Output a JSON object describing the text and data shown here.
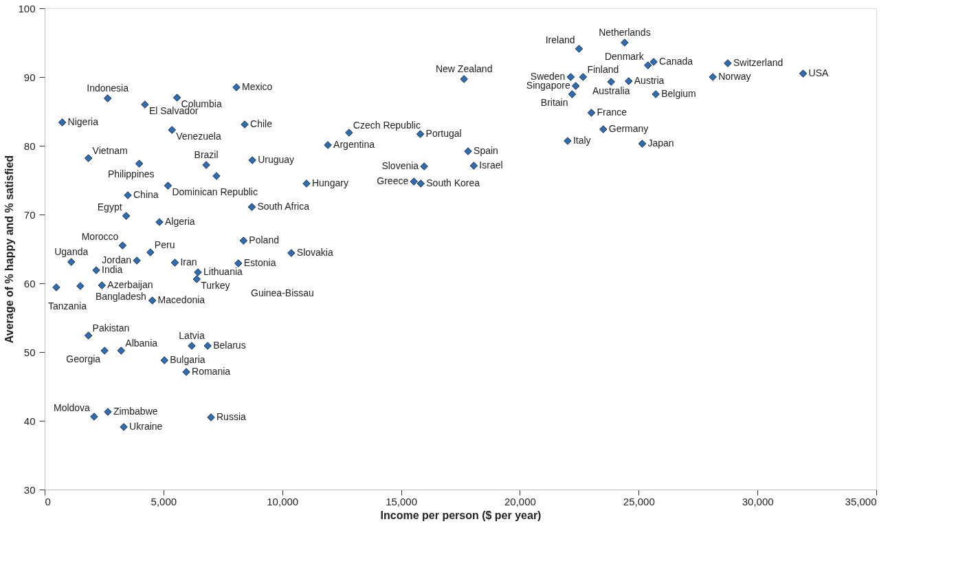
{
  "chart_data": {
    "type": "scatter",
    "xlabel": "Income per person ($ per year)",
    "ylabel": "Average of % happy and % satisfied",
    "marker": "diamond",
    "grid": false,
    "xlim": [
      0,
      35000
    ],
    "ylim": [
      30,
      100
    ],
    "xticks": [
      0,
      {
        "value": 5000,
        "label": "5,000"
      },
      {
        "value": 10000,
        "label": "10,000"
      },
      {
        "value": 15000,
        "label": "15,000"
      },
      {
        "value": 20000,
        "label": "20,000"
      },
      {
        "value": 25000,
        "label": "25,000"
      },
      {
        "value": 30000,
        "label": "30,000"
      },
      {
        "value": 35000,
        "label": "35,000"
      }
    ],
    "yticks": [
      30,
      40,
      50,
      60,
      70,
      80,
      90,
      100
    ],
    "series": [
      {
        "color": "#2e6db4",
        "x": [
          22490,
          24410,
          25390,
          25630,
          28750,
          28120,
          31920,
          17650,
          22140,
          22660,
          22350,
          22200,
          23840,
          24580,
          25720,
          23010,
          23510,
          22010,
          25150,
          15810,
          17820,
          18060,
          15970,
          15540,
          15830,
          2650,
          4220,
          5570,
          8070,
          740,
          5360,
          8420,
          12810,
          11920,
          1840,
          3980,
          6800,
          7230,
          8740,
          11020,
          5190,
          3500,
          8720,
          3430,
          4830,
          3280,
          8370,
          4450,
          10380,
          1120,
          3880,
          5480,
          8150,
          2170,
          6450,
          6400,
          490,
          1500,
          2410,
          4530,
          1840,
          2520,
          3220,
          6190,
          6860,
          5040,
          5960,
          2080,
          2660,
          3330,
          7000
        ],
        "values": [
          94.1,
          95.0,
          91.7,
          92.2,
          92.0,
          90.0,
          90.5,
          89.7,
          90.0,
          90.0,
          88.7,
          87.5,
          89.3,
          89.4,
          87.5,
          84.8,
          82.4,
          80.7,
          80.3,
          81.7,
          79.2,
          77.1,
          77.0,
          74.8,
          74.5,
          86.9,
          86.0,
          87.0,
          88.5,
          83.4,
          82.3,
          83.1,
          81.9,
          80.1,
          78.2,
          77.4,
          77.2,
          75.6,
          77.9,
          74.5,
          74.2,
          72.8,
          71.1,
          69.8,
          68.9,
          65.5,
          66.2,
          64.5,
          64.4,
          63.1,
          63.3,
          63.0,
          62.9,
          61.9,
          61.6,
          60.6,
          59.4,
          59.6,
          59.7,
          57.5,
          52.4,
          50.2,
          50.2,
          50.9,
          50.9,
          48.8,
          47.1,
          40.6,
          41.3,
          39.1,
          40.5
        ]
      }
    ],
    "annotations": [
      {
        "text": "Ireland",
        "x": 22490,
        "y": 94.1
      },
      {
        "text": "Netherlands",
        "x": 24410,
        "y": 95.0
      },
      {
        "text": "Denmark",
        "x": 25390,
        "y": 91.7
      },
      {
        "text": "Canada",
        "x": 25630,
        "y": 92.2
      },
      {
        "text": "Switzerland",
        "x": 28750,
        "y": 92.0
      },
      {
        "text": "Norway",
        "x": 28120,
        "y": 90.0
      },
      {
        "text": "USA",
        "x": 31920,
        "y": 90.5
      },
      {
        "text": "New Zealand",
        "x": 17650,
        "y": 89.7
      },
      {
        "text": "Sweden",
        "x": 22140,
        "y": 90.0
      },
      {
        "text": "Finland",
        "x": 22660,
        "y": 90.0
      },
      {
        "text": "Singapore",
        "x": 22350,
        "y": 88.7
      },
      {
        "text": "Britain",
        "x": 22200,
        "y": 87.5
      },
      {
        "text": "Australia",
        "x": 23840,
        "y": 89.3
      },
      {
        "text": "Austria",
        "x": 24580,
        "y": 89.4
      },
      {
        "text": "Belgium",
        "x": 25720,
        "y": 87.5
      },
      {
        "text": "France",
        "x": 23010,
        "y": 84.8
      },
      {
        "text": "Germany",
        "x": 23510,
        "y": 82.4
      },
      {
        "text": "Italy",
        "x": 22010,
        "y": 80.7
      },
      {
        "text": "Japan",
        "x": 25150,
        "y": 80.3
      },
      {
        "text": "Portugal",
        "x": 15810,
        "y": 81.7
      },
      {
        "text": "Spain",
        "x": 17820,
        "y": 79.2
      },
      {
        "text": "Israel",
        "x": 18060,
        "y": 77.1
      },
      {
        "text": "Slovenia",
        "x": 15970,
        "y": 77.0
      },
      {
        "text": "Greece",
        "x": 15540,
        "y": 74.8
      },
      {
        "text": "South Korea",
        "x": 15830,
        "y": 74.5
      },
      {
        "text": "Indonesia",
        "x": 2650,
        "y": 86.9
      },
      {
        "text": "El Salvador",
        "x": 4220,
        "y": 86.0
      },
      {
        "text": "Columbia",
        "x": 5570,
        "y": 87.0
      },
      {
        "text": "Mexico",
        "x": 8070,
        "y": 88.5
      },
      {
        "text": "Nigeria",
        "x": 740,
        "y": 83.4
      },
      {
        "text": "Venezuela",
        "x": 5360,
        "y": 82.3
      },
      {
        "text": "Chile",
        "x": 8420,
        "y": 83.1
      },
      {
        "text": "Czech Republic",
        "x": 12810,
        "y": 81.9
      },
      {
        "text": "Argentina",
        "x": 11920,
        "y": 80.1
      },
      {
        "text": "Vietnam",
        "x": 1840,
        "y": 78.2
      },
      {
        "text": "Philippines",
        "x": 3980,
        "y": 77.4
      },
      {
        "text": "Brazil",
        "x": 6800,
        "y": 77.2
      },
      {
        "text": "Uruguay",
        "x": 8740,
        "y": 77.9
      },
      {
        "text": "Hungary",
        "x": 11020,
        "y": 74.5
      },
      {
        "text": "Dominican Republic",
        "x": 5190,
        "y": 74.2
      },
      {
        "text": "China",
        "x": 3500,
        "y": 72.8
      },
      {
        "text": "South Africa",
        "x": 8720,
        "y": 71.1
      },
      {
        "text": "Egypt",
        "x": 3430,
        "y": 69.8
      },
      {
        "text": "Algeria",
        "x": 4830,
        "y": 68.9
      },
      {
        "text": "Morocco",
        "x": 3280,
        "y": 65.5
      },
      {
        "text": "Poland",
        "x": 8370,
        "y": 66.2
      },
      {
        "text": "Peru",
        "x": 4450,
        "y": 64.5
      },
      {
        "text": "Slovakia",
        "x": 10380,
        "y": 64.4
      },
      {
        "text": "Uganda",
        "x": 1120,
        "y": 63.1
      },
      {
        "text": "Jordan",
        "x": 3880,
        "y": 63.3
      },
      {
        "text": "Iran",
        "x": 5480,
        "y": 63.0
      },
      {
        "text": "Estonia",
        "x": 8150,
        "y": 62.9
      },
      {
        "text": "India",
        "x": 2170,
        "y": 61.9
      },
      {
        "text": "Lithuania",
        "x": 6450,
        "y": 61.6
      },
      {
        "text": "Turkey",
        "x": 6400,
        "y": 60.6
      },
      {
        "text": "Tanzania",
        "x": 490,
        "y": 59.4
      },
      {
        "text": "Bangladesh",
        "x": 1500,
        "y": 59.6
      },
      {
        "text": "Azerbaijan",
        "x": 2410,
        "y": 59.7
      },
      "Guinea-Bissau",
      {
        "text": "Macedonia",
        "x": 4530,
        "y": 57.5
      },
      {
        "text": "Pakistan",
        "x": 1840,
        "y": 52.4
      },
      {
        "text": "Georgia",
        "x": 2520,
        "y": 50.2
      },
      {
        "text": "Albania",
        "x": 3220,
        "y": 50.2
      },
      {
        "text": "Latvia",
        "x": 6190,
        "y": 50.9
      },
      {
        "text": "Belarus",
        "x": 6860,
        "y": 50.9
      },
      {
        "text": "Bulgaria",
        "x": 5040,
        "y": 48.8
      },
      {
        "text": "Romania",
        "x": 5960,
        "y": 47.1
      },
      {
        "text": "Moldova",
        "x": 2080,
        "y": 40.6
      },
      {
        "text": "Zimbabwe",
        "x": 2660,
        "y": 41.3
      },
      {
        "text": "Ukraine",
        "x": 3330,
        "y": 39.1
      },
      {
        "text": "Russia",
        "x": 7000,
        "y": 40.5
      }
    ]
  }
}
